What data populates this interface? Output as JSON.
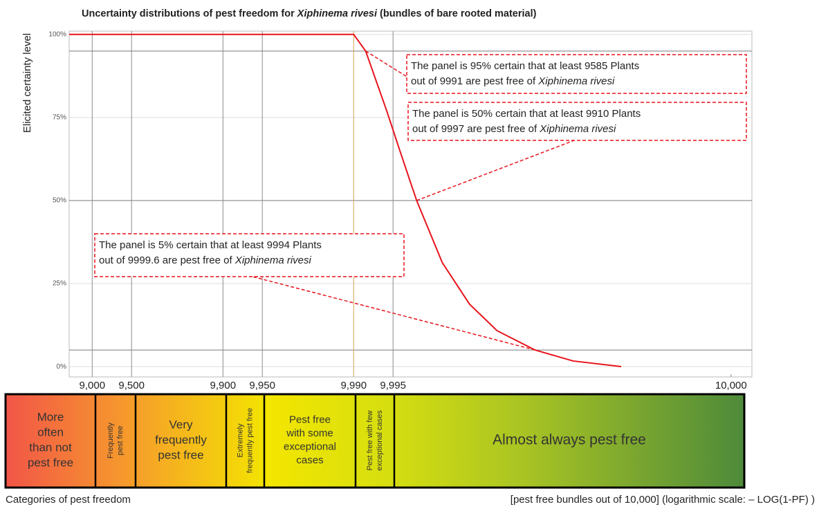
{
  "chart_data": {
    "type": "line",
    "title": [
      "Uncertainty distributions of pest freedom for ",
      "Xiphinema rivesi",
      " (bundles of bare rooted material)"
    ],
    "ylabel": "Elicited certainty level",
    "xlabel": "[pest free bundles out of 10,000] (logarithmic scale: – LOG(1-PF) )",
    "xscale": "log-complement",
    "xscale_total": 10000,
    "xlim": [
      8500,
      9999.991
    ],
    "xticks": [
      {
        "value": 9000,
        "label": "9,000"
      },
      {
        "value": 9500,
        "label": "9,500"
      },
      {
        "value": 9900,
        "label": "9,900"
      },
      {
        "value": 9950,
        "label": "9,950"
      },
      {
        "value": 9990,
        "label": "9,990"
      },
      {
        "value": 9995,
        "label": "9,995"
      },
      {
        "value": 9999.987,
        "label": "10,000"
      }
    ],
    "xgrid_colors": [
      "#8a8a8a",
      "#8a8a8a",
      "#8a8a8a",
      "#8a8a8a",
      "#d6a654",
      "#8a8a8a",
      null
    ],
    "ylim": [
      -3.1,
      101
    ],
    "yticks": [
      {
        "value": 0,
        "label": "0%"
      },
      {
        "value": 25,
        "label": "25%"
      },
      {
        "value": 50,
        "label": "50%"
      },
      {
        "value": 75,
        "label": "75%"
      },
      {
        "value": 100,
        "label": "100%"
      }
    ],
    "hlines": [
      5,
      50,
      95
    ],
    "grid": true,
    "series": [
      {
        "name": "Elicited certainty",
        "color": "#e8121a",
        "x": [
          8500,
          9990,
          9991.9,
          9994.4,
          9995.6,
          9996.7,
          9997.9,
          9998.7,
          9999.2,
          9999.59,
          9999.79,
          9999.91
        ],
        "values": [
          100,
          100,
          95,
          77.1,
          64.6,
          50,
          31.3,
          18.8,
          10.8,
          5,
          1.7,
          0
        ]
      }
    ],
    "annotations": [
      {
        "x": 9991.9,
        "y": 95,
        "lines": [
          [
            "The panel is 95% certain that at least 9585 Plants"
          ],
          [
            "out of 9991 are pest free of  ",
            "Xiphinema rivesi"
          ]
        ]
      },
      {
        "x": 9996.7,
        "y": 50,
        "lines": [
          [
            "The panel is 50% certain that at least 9910 Plants"
          ],
          [
            "out of 9997 are pest free of ",
            "Xiphinema rivesi"
          ]
        ]
      },
      {
        "x": 9999.59,
        "y": 5,
        "lines": [
          [
            "The panel is 5% certain that at least 9994 Plants"
          ],
          [
            "out of 9999.6 are pest free of ",
            "Xiphinema rivesi"
          ]
        ]
      }
    ]
  },
  "categories_of_pest_freedom": {
    "caption": "Categories of pest freedom",
    "items": [
      {
        "lines": [
          "More",
          "often",
          "than not",
          "pest free"
        ]
      },
      {
        "lines": [
          "Frequently",
          "pest free"
        ]
      },
      {
        "lines": [
          "Very",
          "frequently",
          "pest free"
        ]
      },
      {
        "lines": [
          "Extremely",
          "frequently pest free"
        ]
      },
      {
        "lines": [
          "Pest free",
          "with some",
          "exceptional",
          "cases"
        ]
      },
      {
        "lines": [
          "Pest free with few",
          "exceptional cases"
        ]
      },
      {
        "lines": [
          "Almost always pest free"
        ]
      }
    ]
  }
}
